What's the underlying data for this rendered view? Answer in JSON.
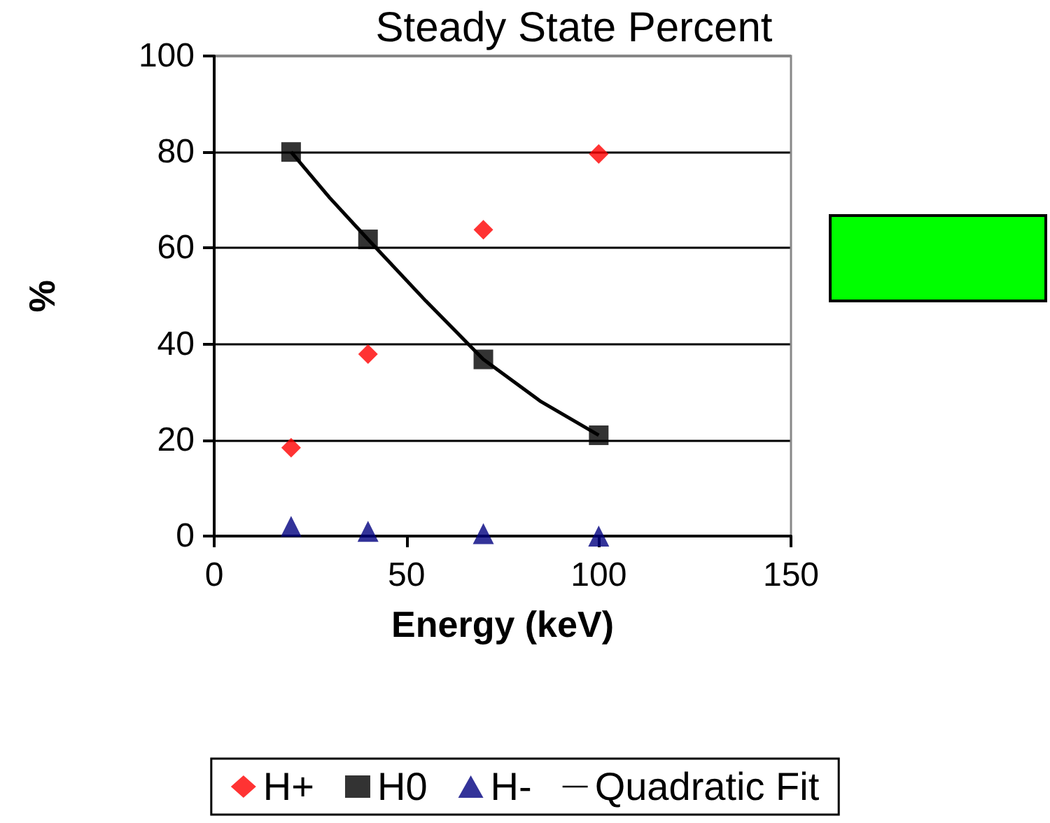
{
  "chart_data": {
    "type": "scatter",
    "title": "Steady State Percent",
    "xlabel": "Energy (keV)",
    "ylabel": "%",
    "xlim": [
      0,
      150
    ],
    "xticks": [
      0,
      50,
      100,
      150
    ],
    "ylim": [
      0,
      100
    ],
    "yticks": [
      0,
      20,
      40,
      60,
      80,
      100
    ],
    "grid": "y",
    "legend": "bottom",
    "series": [
      {
        "name": "H+",
        "color": "#ff0000",
        "marker": "diamond",
        "x": [
          20,
          40,
          70,
          100
        ],
        "values": [
          18.4,
          37.9,
          63.8,
          79.6
        ]
      },
      {
        "name": "H0",
        "color": "#000000",
        "marker": "square",
        "x": [
          20,
          40,
          70,
          100
        ],
        "values": [
          80,
          61.8,
          36.8,
          21
        ]
      },
      {
        "name": "H-",
        "color": "#000080",
        "marker": "triangle",
        "x": [
          20,
          40,
          70,
          100
        ],
        "values": [
          2,
          1,
          0.5,
          0
        ]
      },
      {
        "name": "Quadratic Fit",
        "type": "line",
        "color": "#000000",
        "marker": "none",
        "line_style": "solid",
        "x": [
          20,
          30,
          40,
          55,
          70,
          85,
          100
        ],
        "values": [
          80,
          70.5,
          61.8,
          49,
          36.8,
          28,
          21
        ]
      }
    ]
  }
}
